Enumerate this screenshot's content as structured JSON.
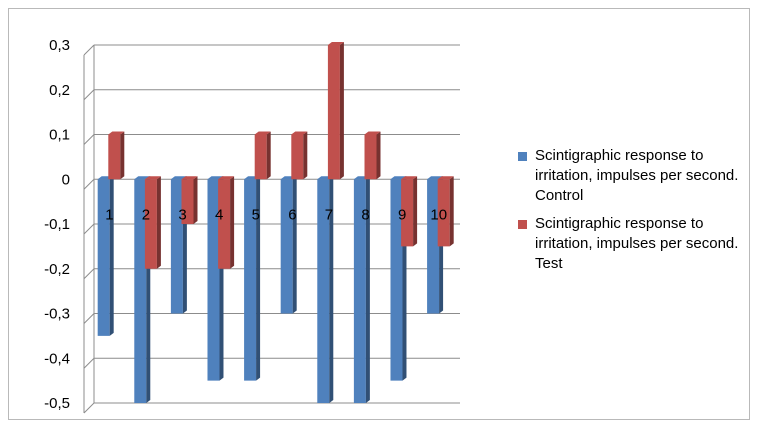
{
  "chart_data": {
    "type": "bar",
    "title": "",
    "xlabel": "",
    "ylabel": "",
    "categories": [
      "1",
      "2",
      "3",
      "4",
      "5",
      "6",
      "7",
      "8",
      "9",
      "10"
    ],
    "series": [
      {
        "name": "Scintigraphic response to irritation, impulses per second. Control",
        "color": "#4f81bd",
        "values": [
          -0.35,
          -0.5,
          -0.3,
          -0.45,
          -0.45,
          -0.3,
          -0.5,
          -0.5,
          -0.45,
          -0.3
        ]
      },
      {
        "name": "Scintigraphic response to irritation, impulses per second. Test",
        "color": "#c0504d",
        "values": [
          0.1,
          -0.2,
          -0.1,
          -0.2,
          0.1,
          0.1,
          0.3,
          0.1,
          -0.15,
          -0.15
        ]
      }
    ],
    "ylim": [
      -0.5,
      0.3
    ],
    "yticks": [
      0.3,
      0.2,
      0.1,
      0,
      -0.1,
      -0.2,
      -0.3,
      -0.4,
      -0.5
    ],
    "ytick_labels": [
      "0,3",
      "0,2",
      "0,1",
      "0",
      "-0,1",
      "-0,2",
      "-0,3",
      "-0,4",
      "-0,5"
    ],
    "grid": true,
    "legend_position": "right",
    "style": "3d-clustered-column"
  }
}
